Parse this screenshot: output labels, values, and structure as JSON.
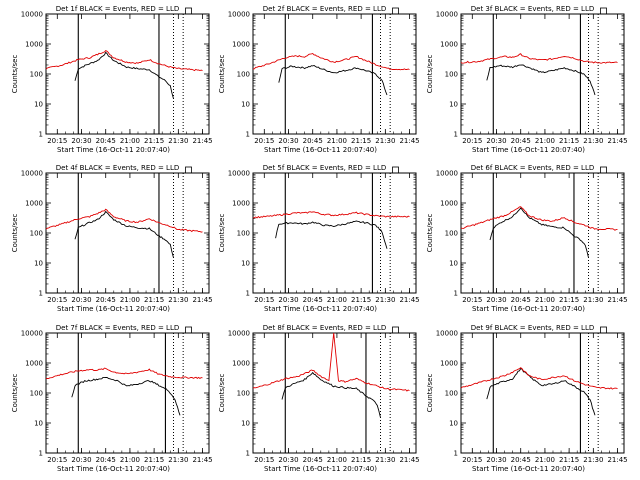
{
  "figure": {
    "ylabel": "Counts/sec",
    "xlabel": "Start Time (16-Oct-11 20:07:40)",
    "x_ticks": [
      "20:15",
      "20:30",
      "20:45",
      "21:00",
      "21:15",
      "21:30",
      "21:45"
    ],
    "y_ticks": [
      "1",
      "10",
      "100",
      "1000",
      "10000"
    ],
    "colors": {
      "events": "#000000",
      "lld": "#e00000",
      "axes": "#000000"
    }
  },
  "chart_data": [
    {
      "type": "line",
      "title": "Det 1f BLACK = Events, RED = LLD",
      "solid_lines": [
        "20:28",
        "21:18"
      ],
      "dotted_lines": [
        "21:27",
        "21:33"
      ],
      "ylim": [
        1,
        10000
      ],
      "log_y": true,
      "series": [
        {
          "name": "Events",
          "color": "black",
          "x": [
            "20:26",
            "20:28",
            "20:33",
            "20:40",
            "20:45",
            "20:50",
            "20:58",
            "21:05",
            "21:12",
            "21:18",
            "21:22",
            "21:25",
            "21:27"
          ],
          "y": [
            60,
            150,
            200,
            280,
            500,
            280,
            170,
            150,
            140,
            80,
            60,
            40,
            15
          ]
        },
        {
          "name": "LLD",
          "color": "red",
          "x": [
            "20:08",
            "20:18",
            "20:28",
            "20:35",
            "20:40",
            "20:45",
            "20:50",
            "20:58",
            "21:05",
            "21:12",
            "21:18",
            "21:25",
            "21:30",
            "21:45"
          ],
          "y": [
            150,
            200,
            300,
            350,
            450,
            600,
            350,
            250,
            230,
            300,
            220,
            170,
            150,
            130
          ]
        }
      ]
    },
    {
      "type": "line",
      "title": "Det 2f BLACK = Events, RED = LLD",
      "solid_lines": [
        "20:28",
        "21:22"
      ],
      "dotted_lines": [
        "21:27",
        "21:33"
      ],
      "ylim": [
        1,
        10000
      ],
      "log_y": true,
      "series": [
        {
          "name": "Events",
          "color": "black",
          "x": [
            "20:24",
            "20:26",
            "20:32",
            "20:40",
            "20:45",
            "20:52",
            "20:58",
            "21:05",
            "21:12",
            "21:18",
            "21:24",
            "21:28",
            "21:31"
          ],
          "y": [
            50,
            150,
            180,
            160,
            190,
            140,
            110,
            130,
            160,
            130,
            100,
            60,
            20
          ]
        },
        {
          "name": "LLD",
          "color": "red",
          "x": [
            "20:08",
            "20:18",
            "20:28",
            "20:35",
            "20:40",
            "20:45",
            "20:50",
            "20:58",
            "21:05",
            "21:12",
            "21:18",
            "21:25",
            "21:32",
            "21:45"
          ],
          "y": [
            150,
            220,
            350,
            400,
            380,
            480,
            350,
            250,
            300,
            380,
            280,
            200,
            150,
            140
          ]
        }
      ]
    },
    {
      "type": "line",
      "title": "Det 3f BLACK = Events, RED = LLD",
      "solid_lines": [
        "20:28",
        "21:22"
      ],
      "dotted_lines": [
        "21:27",
        "21:33"
      ],
      "ylim": [
        1,
        10000
      ],
      "log_y": true,
      "series": [
        {
          "name": "Events",
          "color": "black",
          "x": [
            "20:24",
            "20:26",
            "20:32",
            "20:40",
            "20:45",
            "20:52",
            "20:58",
            "21:05",
            "21:12",
            "21:18",
            "21:24",
            "21:28",
            "21:31"
          ],
          "y": [
            60,
            160,
            190,
            170,
            210,
            150,
            110,
            130,
            160,
            130,
            100,
            60,
            20
          ]
        },
        {
          "name": "LLD",
          "color": "red",
          "x": [
            "20:08",
            "20:18",
            "20:28",
            "20:35",
            "20:40",
            "20:45",
            "20:50",
            "20:58",
            "21:05",
            "21:12",
            "21:18",
            "21:25",
            "21:32",
            "21:45"
          ],
          "y": [
            240,
            260,
            330,
            380,
            360,
            450,
            330,
            290,
            320,
            400,
            340,
            260,
            240,
            240
          ]
        }
      ]
    },
    {
      "type": "line",
      "title": "Det 4f BLACK = Events, RED = LLD",
      "solid_lines": [
        "20:28",
        "21:18"
      ],
      "dotted_lines": [
        "21:27",
        "21:33"
      ],
      "ylim": [
        1,
        10000
      ],
      "log_y": true,
      "series": [
        {
          "name": "Events",
          "color": "black",
          "x": [
            "20:26",
            "20:28",
            "20:33",
            "20:40",
            "20:45",
            "20:50",
            "20:58",
            "21:05",
            "21:12",
            "21:18",
            "21:22",
            "21:25",
            "21:27"
          ],
          "y": [
            60,
            150,
            200,
            280,
            500,
            280,
            170,
            150,
            140,
            80,
            60,
            40,
            15
          ]
        },
        {
          "name": "LLD",
          "color": "red",
          "x": [
            "20:08",
            "20:18",
            "20:28",
            "20:35",
            "20:40",
            "20:45",
            "20:50",
            "20:58",
            "21:05",
            "21:12",
            "21:18",
            "21:25",
            "21:30",
            "21:45"
          ],
          "y": [
            140,
            200,
            300,
            350,
            450,
            600,
            350,
            250,
            230,
            300,
            220,
            170,
            130,
            110
          ]
        }
      ]
    },
    {
      "type": "line",
      "title": "Det 5f BLACK = Events, RED = LLD",
      "solid_lines": [
        "20:28",
        "21:22"
      ],
      "dotted_lines": [
        "21:27",
        "21:33"
      ],
      "ylim": [
        1,
        10000
      ],
      "log_y": true,
      "series": [
        {
          "name": "Events",
          "color": "black",
          "x": [
            "20:22",
            "20:24",
            "20:32",
            "20:40",
            "20:45",
            "20:52",
            "20:58",
            "21:05",
            "21:12",
            "21:18",
            "21:24",
            "21:28",
            "21:31"
          ],
          "y": [
            70,
            200,
            220,
            200,
            230,
            180,
            170,
            200,
            240,
            220,
            180,
            110,
            30
          ]
        },
        {
          "name": "LLD",
          "color": "red",
          "x": [
            "20:08",
            "20:18",
            "20:28",
            "20:35",
            "20:40",
            "20:45",
            "20:50",
            "20:58",
            "21:05",
            "21:12",
            "21:18",
            "21:25",
            "21:32",
            "21:45"
          ],
          "y": [
            330,
            360,
            420,
            470,
            460,
            520,
            430,
            390,
            420,
            470,
            420,
            370,
            350,
            350
          ]
        }
      ]
    },
    {
      "type": "line",
      "title": "Det 6f BLACK = Events, RED = LLD",
      "solid_lines": [
        "20:28",
        "21:18"
      ],
      "dotted_lines": [
        "21:27",
        "21:33"
      ],
      "ylim": [
        1,
        10000
      ],
      "log_y": true,
      "series": [
        {
          "name": "Events",
          "color": "black",
          "x": [
            "20:26",
            "20:28",
            "20:33",
            "20:40",
            "20:45",
            "20:50",
            "20:58",
            "21:05",
            "21:12",
            "21:18",
            "21:22",
            "21:25",
            "21:27"
          ],
          "y": [
            60,
            150,
            230,
            350,
            700,
            330,
            190,
            160,
            150,
            80,
            60,
            40,
            15
          ]
        },
        {
          "name": "LLD",
          "color": "red",
          "x": [
            "20:08",
            "20:18",
            "20:28",
            "20:35",
            "20:40",
            "20:45",
            "20:50",
            "20:58",
            "21:05",
            "21:12",
            "21:18",
            "21:25",
            "21:30",
            "21:45"
          ],
          "y": [
            140,
            200,
            300,
            380,
            520,
            750,
            380,
            270,
            250,
            330,
            230,
            180,
            140,
            130
          ]
        }
      ]
    },
    {
      "type": "line",
      "title": "Det 7f BLACK = Events, RED = LLD",
      "solid_lines": [
        "20:28",
        "21:22"
      ],
      "dotted_lines": [
        "21:27",
        "21:33"
      ],
      "ylim": [
        1,
        10000
      ],
      "log_y": true,
      "series": [
        {
          "name": "Events",
          "color": "black",
          "x": [
            "20:24",
            "20:26",
            "20:32",
            "20:40",
            "20:45",
            "20:52",
            "20:58",
            "21:05",
            "21:12",
            "21:18",
            "21:24",
            "21:28",
            "21:31"
          ],
          "y": [
            70,
            180,
            250,
            290,
            330,
            260,
            170,
            200,
            260,
            180,
            120,
            60,
            18
          ]
        },
        {
          "name": "LLD",
          "color": "red",
          "x": [
            "20:08",
            "20:18",
            "20:28",
            "20:35",
            "20:40",
            "20:45",
            "20:50",
            "20:58",
            "21:05",
            "21:12",
            "21:18",
            "21:25",
            "21:32",
            "21:45"
          ],
          "y": [
            300,
            420,
            550,
            600,
            580,
            650,
            500,
            430,
            500,
            600,
            420,
            350,
            330,
            320
          ]
        }
      ]
    },
    {
      "type": "line",
      "title": "Det 8f BLACK = Events, RED = LLD",
      "solid_lines": [
        "20:28",
        "21:18"
      ],
      "dotted_lines": [
        "21:27",
        "21:33"
      ],
      "ylim": [
        1,
        10000
      ],
      "log_y": true,
      "series": [
        {
          "name": "Events",
          "color": "black",
          "x": [
            "20:26",
            "20:28",
            "20:33",
            "20:40",
            "20:45",
            "20:50",
            "20:58",
            "21:05",
            "21:12",
            "21:18",
            "21:22",
            "21:25",
            "21:27"
          ],
          "y": [
            60,
            150,
            200,
            280,
            480,
            280,
            170,
            150,
            140,
            80,
            60,
            40,
            15
          ]
        },
        {
          "name": "LLD",
          "color": "red",
          "x": [
            "20:08",
            "20:18",
            "20:28",
            "20:35",
            "20:40",
            "20:45",
            "20:50",
            "20:55",
            "20:58",
            "21:01",
            "21:05",
            "21:12",
            "21:18",
            "21:25",
            "21:30",
            "21:45"
          ],
          "y": [
            140,
            200,
            300,
            350,
            440,
            580,
            360,
            260,
            10000,
            260,
            240,
            300,
            220,
            170,
            140,
            120
          ]
        }
      ]
    },
    {
      "type": "line",
      "title": "Det 9f BLACK = Events, RED = LLD",
      "solid_lines": [
        "20:28",
        "21:22"
      ],
      "dotted_lines": [
        "21:27",
        "21:33"
      ],
      "ylim": [
        1,
        10000
      ],
      "log_y": true,
      "series": [
        {
          "name": "Events",
          "color": "black",
          "x": [
            "20:24",
            "20:26",
            "20:32",
            "20:40",
            "20:45",
            "20:52",
            "20:58",
            "21:05",
            "21:12",
            "21:18",
            "21:24",
            "21:28",
            "21:31"
          ],
          "y": [
            60,
            160,
            220,
            300,
            650,
            300,
            180,
            200,
            260,
            170,
            110,
            60,
            18
          ]
        },
        {
          "name": "LLD",
          "color": "red",
          "x": [
            "20:08",
            "20:18",
            "20:28",
            "20:35",
            "20:40",
            "20:45",
            "20:50",
            "20:58",
            "21:05",
            "21:12",
            "21:18",
            "21:25",
            "21:32",
            "21:45"
          ],
          "y": [
            150,
            210,
            300,
            380,
            500,
            700,
            380,
            280,
            330,
            380,
            260,
            190,
            150,
            140
          ]
        }
      ]
    }
  ]
}
